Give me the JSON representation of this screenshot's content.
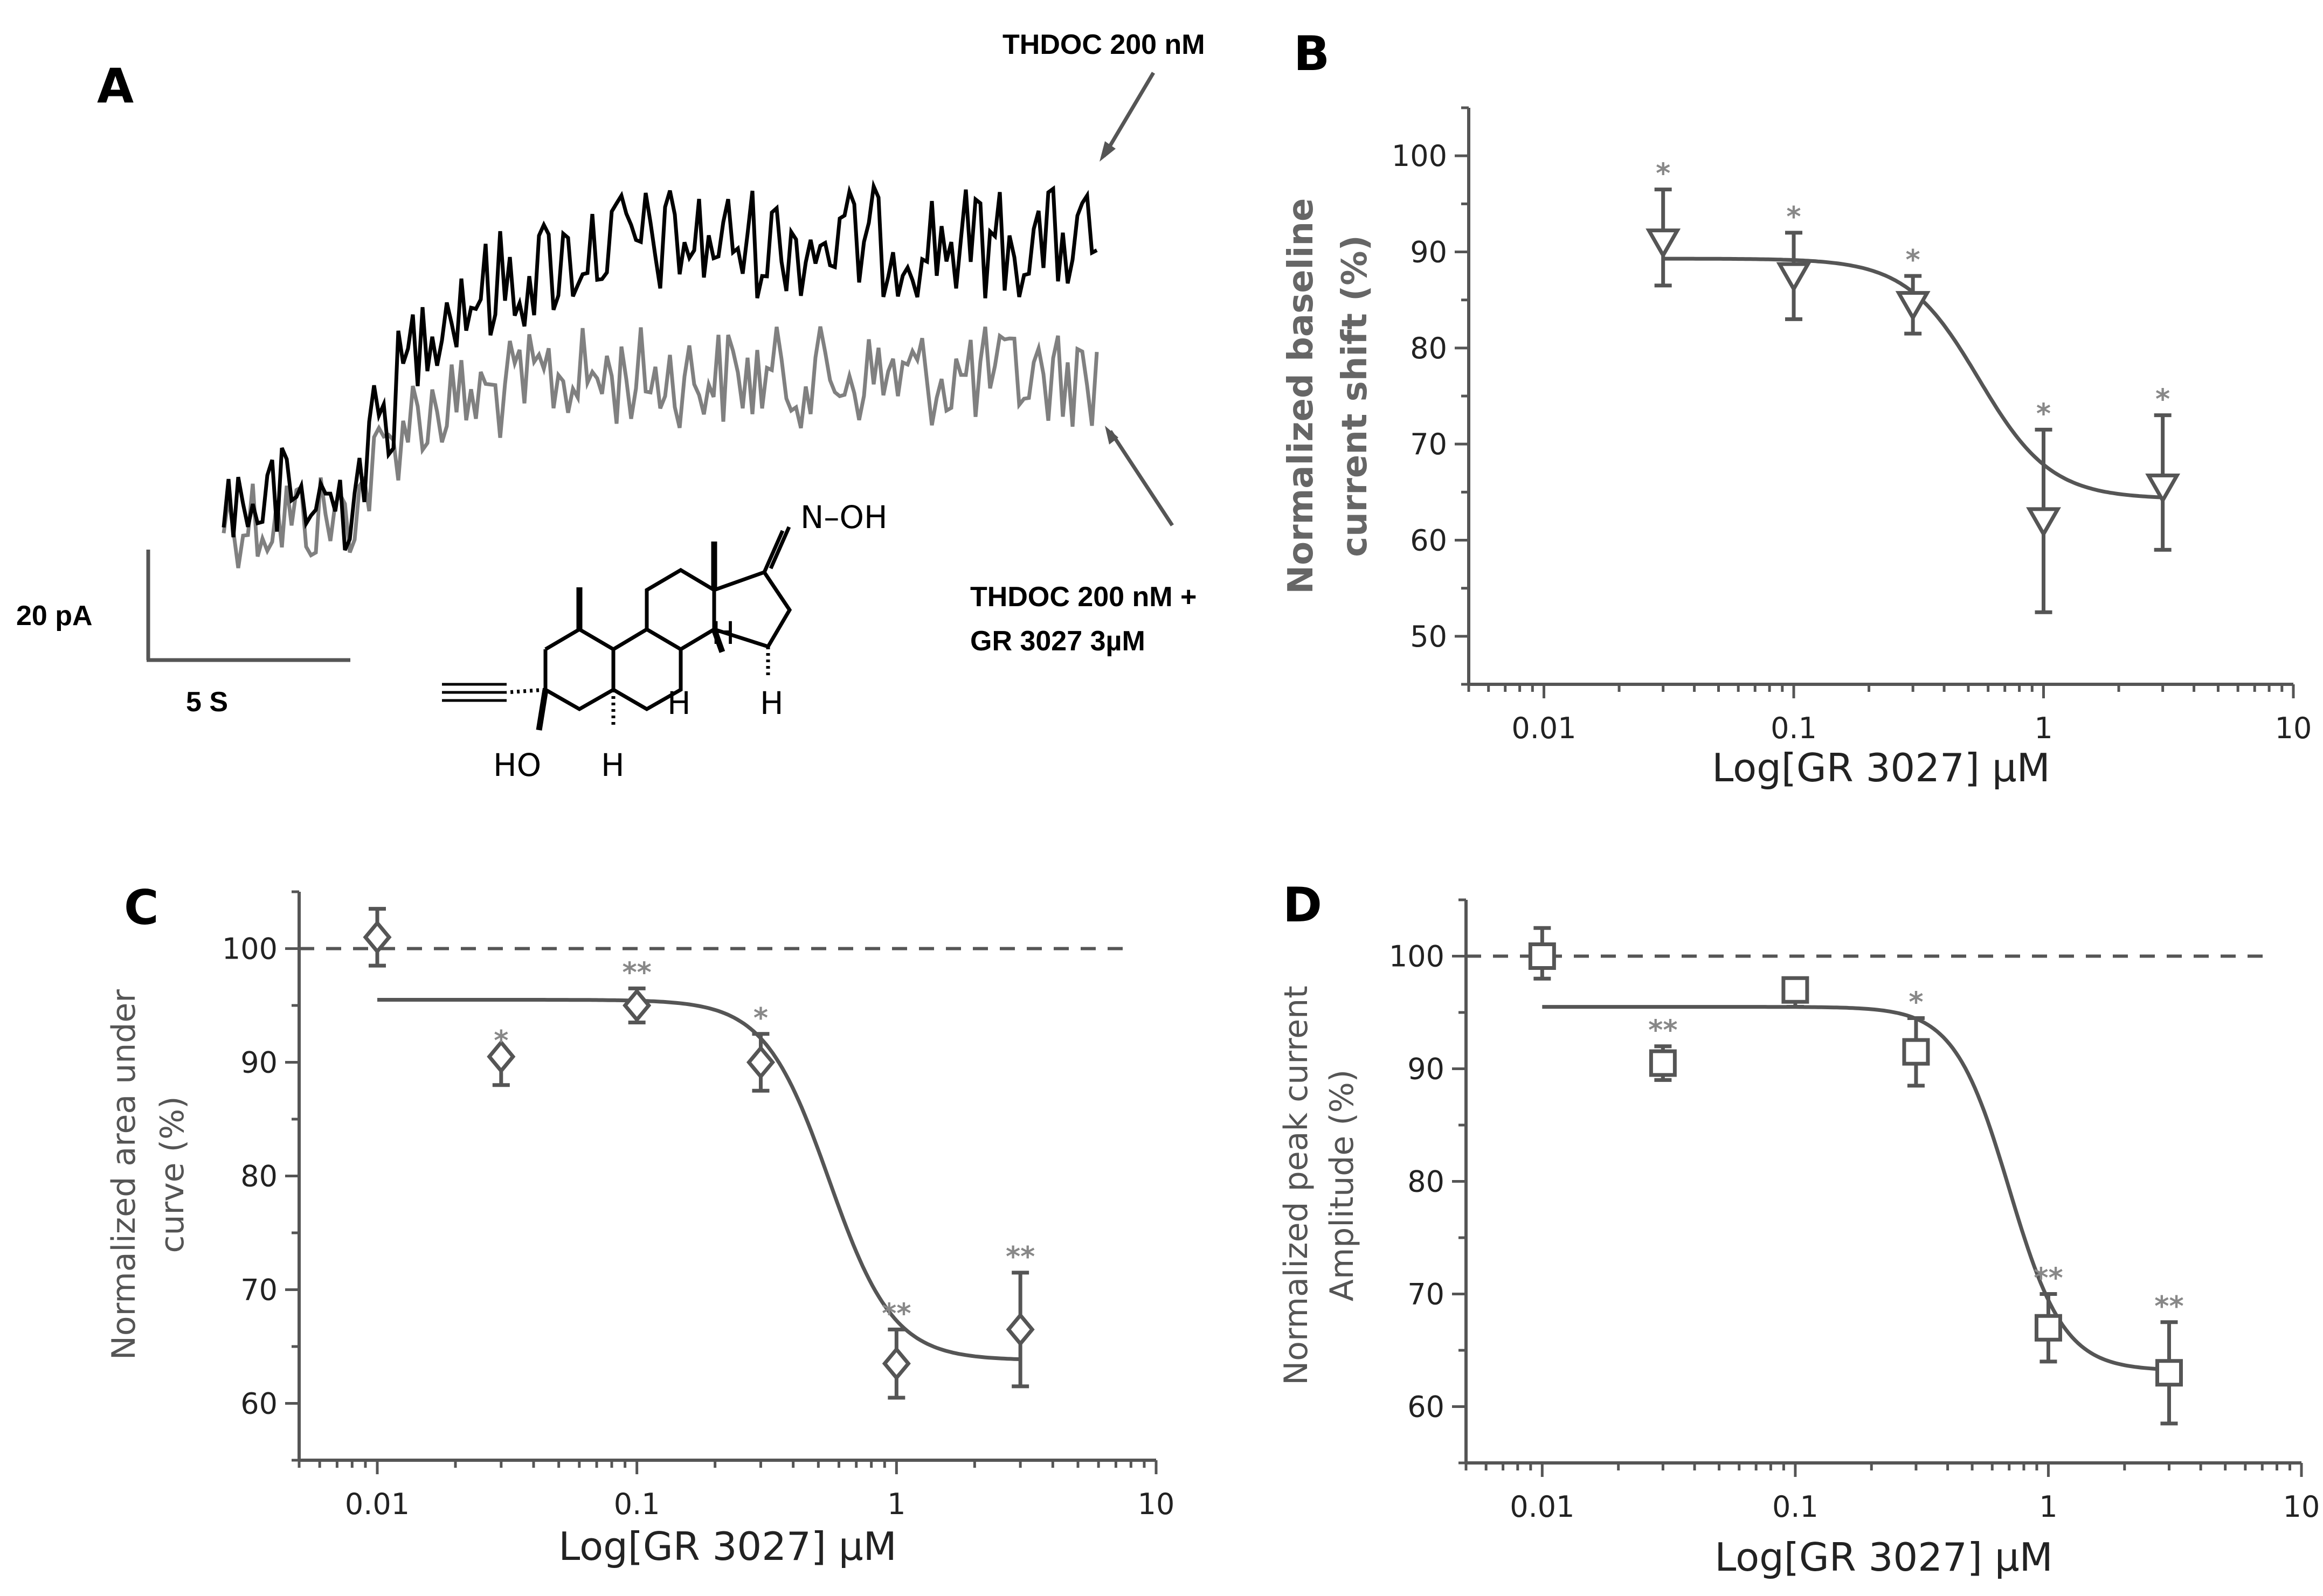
{
  "panel_a": {
    "letter": "A",
    "trace1_label": "THDOC 200 nM",
    "trace2_label_line1": "THDOC 200 nM +",
    "trace2_label_line2": "GR 3027 3µM",
    "scalebar_y": "20 pA",
    "scalebar_x": "5 S",
    "structure": {
      "oh": "N–OH",
      "h": "H",
      "ho": "HO"
    },
    "colors": {
      "trace1": "#000000",
      "trace2": "#808080"
    }
  },
  "chart_data": [
    {
      "type": "scatter",
      "panel": "B",
      "title": "",
      "xscale": "log",
      "xlim": [
        0.005,
        10
      ],
      "ylim": [
        45,
        105
      ],
      "xticks": [
        0.01,
        0.1,
        1,
        10
      ],
      "xtick_labels": [
        "0.01",
        "0.1",
        "1",
        "10"
      ],
      "yticks": [
        50,
        60,
        70,
        80,
        90,
        100
      ],
      "xlabel": "Log[GR 3027] µM",
      "ylabel_line1": "Normalized baseline",
      "ylabel_line2": "current shift (%)",
      "marker": "triangle-down",
      "reference_line": null,
      "x": [
        0.03,
        0.1,
        0.3,
        1.0,
        3.0
      ],
      "y": [
        91,
        87.5,
        84.5,
        62,
        65.5
      ],
      "err_up": [
        5.5,
        4.5,
        3,
        9.5,
        7.5
      ],
      "err_down": [
        4.5,
        4.5,
        3,
        9.5,
        6.5
      ],
      "significance": [
        "*",
        "*",
        "*",
        "*",
        "*"
      ],
      "fit": {
        "top": 89.3,
        "bottom": 64.3,
        "ic50": 0.55,
        "hill": 3.0,
        "x_from": 0.03,
        "x_to": 3.0
      }
    },
    {
      "type": "scatter",
      "panel": "C",
      "title": "",
      "xscale": "log",
      "xlim": [
        0.005,
        10
      ],
      "ylim": [
        55,
        105
      ],
      "xticks": [
        0.01,
        0.1,
        1,
        10
      ],
      "xtick_labels": [
        "0.01",
        "0.1",
        "1",
        "10"
      ],
      "yticks": [
        60,
        70,
        80,
        90,
        100
      ],
      "xlabel": "Log[GR 3027] µM",
      "ylabel_line1": "Normalized area under",
      "ylabel_line2": "curve (%)",
      "marker": "diamond",
      "reference_line": 100,
      "x": [
        0.01,
        0.03,
        0.1,
        0.3,
        1.0,
        3.0
      ],
      "y": [
        101,
        90.5,
        95,
        90,
        63.5,
        66.5
      ],
      "err_up": [
        2.5,
        0,
        1.5,
        2.5,
        3,
        5
      ],
      "err_down": [
        2.5,
        2.5,
        1.5,
        2.5,
        3,
        5
      ],
      "significance": [
        "",
        "*",
        "**",
        "*",
        "**",
        "**"
      ],
      "fit": {
        "top": 95.5,
        "bottom": 63.8,
        "ic50": 0.55,
        "hill": 3.5,
        "x_from": 0.01,
        "x_to": 3.0
      }
    },
    {
      "type": "scatter",
      "panel": "D",
      "title": "",
      "xscale": "log",
      "xlim": [
        0.005,
        10
      ],
      "ylim": [
        55,
        105
      ],
      "xticks": [
        0.01,
        0.1,
        1,
        10
      ],
      "xtick_labels": [
        "0.01",
        "0.1",
        "1",
        "10"
      ],
      "yticks": [
        60,
        70,
        80,
        90,
        100
      ],
      "xlabel": "Log[GR 3027] µM",
      "ylabel_line1": "Normalized peak current",
      "ylabel_line2": "Amplitude (%)",
      "marker": "square",
      "reference_line": 100,
      "x": [
        0.01,
        0.03,
        0.1,
        0.3,
        1.0,
        3.0
      ],
      "y": [
        100,
        90.5,
        97,
        91.5,
        67,
        63
      ],
      "err_up": [
        2.5,
        1.5,
        0,
        3,
        3,
        4.5
      ],
      "err_down": [
        2,
        1.5,
        1.5,
        3,
        3,
        4.5
      ],
      "significance": [
        "",
        "**",
        "",
        "*",
        "**",
        "**"
      ],
      "fit": {
        "top": 95.5,
        "bottom": 63.2,
        "ic50": 0.7,
        "hill": 4.0,
        "x_from": 0.01,
        "x_to": 3.0
      }
    }
  ]
}
